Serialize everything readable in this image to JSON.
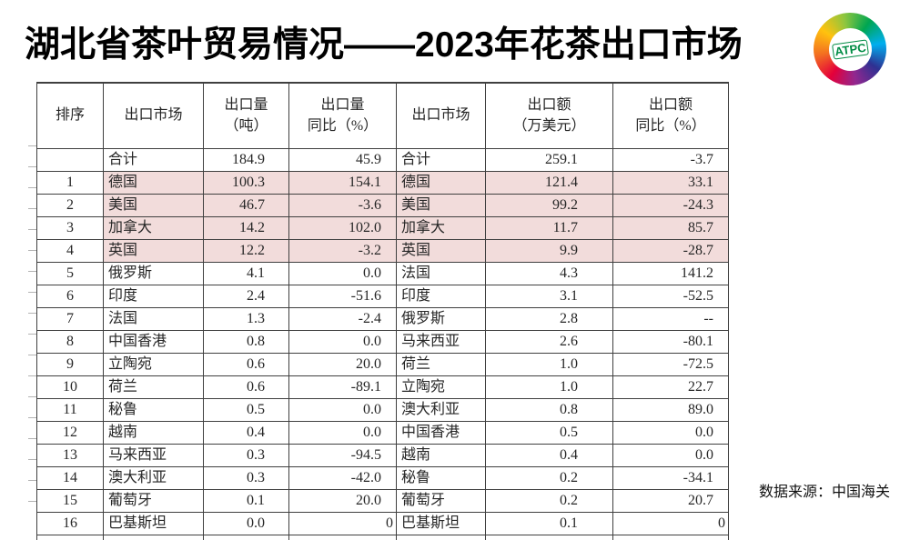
{
  "title": "湖北省茶叶贸易情况——2023年花茶出口市场",
  "logo": {
    "text": "ATPC"
  },
  "source_note": "数据来源：中国海关",
  "colors": {
    "highlight_pink": "#f2dcdb",
    "border": "#3f3f3f",
    "logo_green": "#008c44"
  },
  "table": {
    "columns": [
      "排序",
      "出口市场",
      "出口量\n（吨）",
      "出口量\n同比（%）",
      "出口市场",
      "出口额\n（万美元）",
      "出口额\n同比（%）"
    ],
    "rows": [
      {
        "cells": [
          "",
          "合计",
          "184.9",
          "45.9",
          "合计",
          "259.1",
          "-3.7"
        ],
        "highlighted": false
      },
      {
        "cells": [
          "1",
          "德国",
          "100.3",
          "154.1",
          "德国",
          "121.4",
          "33.1"
        ],
        "highlighted": true
      },
      {
        "cells": [
          "2",
          "美国",
          "46.7",
          "-3.6",
          "美国",
          "99.2",
          "-24.3"
        ],
        "highlighted": true
      },
      {
        "cells": [
          "3",
          "加拿大",
          "14.2",
          "102.0",
          "加拿大",
          "11.7",
          "85.7"
        ],
        "highlighted": true
      },
      {
        "cells": [
          "4",
          "英国",
          "12.2",
          "-3.2",
          "英国",
          "9.9",
          "-28.7"
        ],
        "highlighted": true
      },
      {
        "cells": [
          "5",
          "俄罗斯",
          "4.1",
          "0.0",
          "法国",
          "4.3",
          "141.2"
        ],
        "highlighted": false
      },
      {
        "cells": [
          "6",
          "印度",
          "2.4",
          "-51.6",
          "印度",
          "3.1",
          "-52.5"
        ],
        "highlighted": false
      },
      {
        "cells": [
          "7",
          "法国",
          "1.3",
          "-2.4",
          "俄罗斯",
          "2.8",
          "--"
        ],
        "highlighted": false
      },
      {
        "cells": [
          "8",
          "中国香港",
          "0.8",
          "0.0",
          "马来西亚",
          "2.6",
          "-80.1"
        ],
        "highlighted": false
      },
      {
        "cells": [
          "9",
          "立陶宛",
          "0.6",
          "20.0",
          "荷兰",
          "1.0",
          "-72.5"
        ],
        "highlighted": false
      },
      {
        "cells": [
          "10",
          "荷兰",
          "0.6",
          "-89.1",
          "立陶宛",
          "1.0",
          "22.7"
        ],
        "highlighted": false
      },
      {
        "cells": [
          "11",
          "秘鲁",
          "0.5",
          "0.0",
          "澳大利亚",
          "0.8",
          "89.0"
        ],
        "highlighted": false
      },
      {
        "cells": [
          "12",
          "越南",
          "0.4",
          "0.0",
          "中国香港",
          "0.5",
          "0.0"
        ],
        "highlighted": false
      },
      {
        "cells": [
          "13",
          "马来西亚",
          "0.3",
          "-94.5",
          "越南",
          "0.4",
          "0.0"
        ],
        "highlighted": false
      },
      {
        "cells": [
          "14",
          "澳大利亚",
          "0.3",
          "-42.0",
          "秘鲁",
          "0.2",
          "-34.1"
        ],
        "highlighted": false
      },
      {
        "cells": [
          "15",
          "葡萄牙",
          "0.1",
          "20.0",
          "葡萄牙",
          "0.2",
          "20.7"
        ],
        "highlighted": false
      },
      {
        "cells": [
          "16",
          "巴基斯坦",
          "0.0",
          "0",
          "巴基斯坦",
          "0.1",
          "0"
        ],
        "highlighted": false
      }
    ]
  }
}
